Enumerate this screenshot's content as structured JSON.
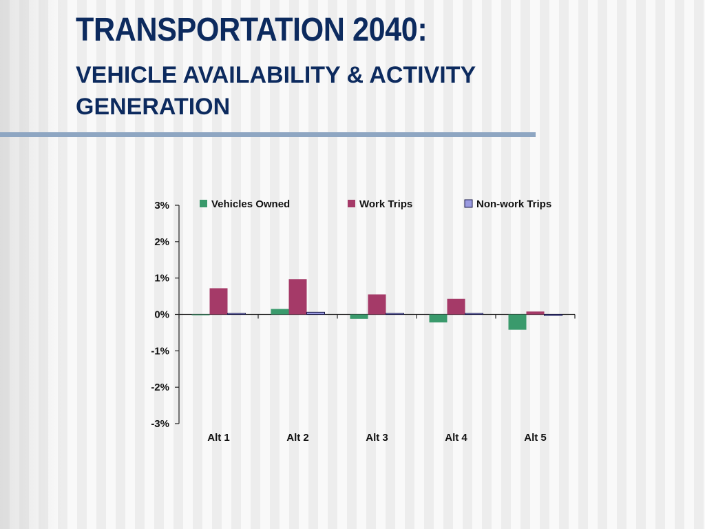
{
  "slide": {
    "title": "TRANSPORTATION 2040:",
    "subtitle": "VEHICLE AVAILABILITY & ACTIVITY GENERATION"
  },
  "chart_data": {
    "type": "bar",
    "title": "",
    "xlabel": "",
    "ylabel": "",
    "categories": [
      "Alt 1",
      "Alt 2",
      "Alt 3",
      "Alt 4",
      "Alt 5"
    ],
    "ylim": [
      -3,
      3
    ],
    "yticks": [
      3,
      2,
      1,
      0,
      -1,
      -2,
      -3
    ],
    "ytick_labels": [
      "3%",
      "2%",
      "1%",
      "0%",
      "-1%",
      "-2%",
      "-3%"
    ],
    "legend_position": "top",
    "grid": false,
    "series": [
      {
        "name": "Vehicles Owned",
        "color": "#3a9a6c",
        "values": [
          0.0,
          0.15,
          -0.12,
          -0.22,
          -0.42
        ]
      },
      {
        "name": "Work Trips",
        "color": "#a53a68",
        "values": [
          0.72,
          0.97,
          0.55,
          0.43,
          0.08
        ]
      },
      {
        "name": "Non-work Trips",
        "color": "#9a9ae0",
        "values": [
          0.03,
          0.06,
          0.03,
          0.03,
          -0.03
        ]
      }
    ]
  }
}
